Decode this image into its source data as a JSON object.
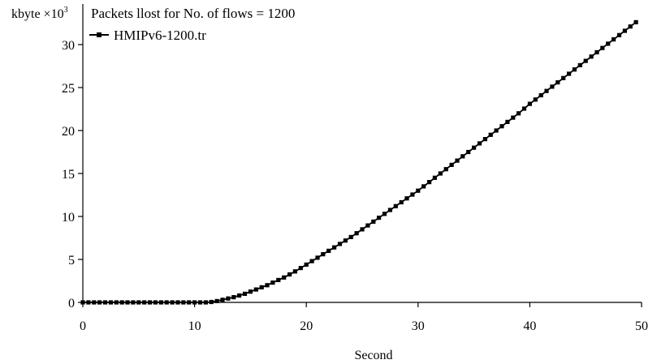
{
  "chart_data": {
    "type": "line",
    "title": "Packets llost for No. of flows = 1200",
    "xlabel": "Second",
    "ylabel": "kbyte ×10",
    "ylabel_exponent": "3",
    "xlim": [
      0,
      50
    ],
    "ylim": [
      0,
      33
    ],
    "x_ticks": [
      0,
      10,
      20,
      30,
      40,
      50
    ],
    "y_ticks": [
      0,
      5,
      10,
      15,
      20,
      25,
      30
    ],
    "grid": false,
    "legend_position": "top-left",
    "series": [
      {
        "name": "HMIPv6-1200.tr",
        "color": "#000000",
        "marker": "square",
        "x": [
          0,
          0.5,
          1,
          1.5,
          2,
          2.5,
          3,
          3.5,
          4,
          4.5,
          5,
          5.5,
          6,
          6.5,
          7,
          7.5,
          8,
          8.5,
          9,
          9.5,
          10,
          10.5,
          11,
          11.5,
          12,
          12.5,
          13,
          13.5,
          14,
          14.5,
          15,
          15.5,
          16,
          16.5,
          17,
          17.5,
          18,
          18.5,
          19,
          19.5,
          20,
          20.5,
          21,
          21.5,
          22,
          22.5,
          23,
          23.5,
          24,
          24.5,
          25,
          25.5,
          26,
          26.5,
          27,
          27.5,
          28,
          28.5,
          29,
          29.5,
          30,
          30.5,
          31,
          31.5,
          32,
          32.5,
          33,
          33.5,
          34,
          34.5,
          35,
          35.5,
          36,
          36.5,
          37,
          37.5,
          38,
          38.5,
          39,
          39.5,
          40,
          40.5,
          41,
          41.5,
          42,
          42.5,
          43,
          43.5,
          44,
          44.5,
          45,
          45.5,
          46,
          46.5,
          47,
          47.5,
          48,
          48.5,
          49,
          49.5
        ],
        "values": [
          0,
          0,
          0,
          0,
          0,
          0,
          0,
          0,
          0,
          0,
          0,
          0,
          0,
          0,
          0,
          0,
          0,
          0,
          0,
          0,
          0,
          0,
          0,
          0.05,
          0.15,
          0.3,
          0.45,
          0.6,
          0.8,
          1.0,
          1.25,
          1.5,
          1.75,
          2.0,
          2.3,
          2.6,
          2.9,
          3.25,
          3.6,
          4.0,
          4.4,
          4.8,
          5.2,
          5.6,
          6.0,
          6.4,
          6.8,
          7.2,
          7.6,
          8.05,
          8.5,
          8.95,
          9.4,
          9.85,
          10.3,
          10.75,
          11.2,
          11.65,
          12.1,
          12.55,
          13.0,
          13.5,
          14.0,
          14.5,
          15.0,
          15.5,
          16.0,
          16.5,
          17.0,
          17.5,
          18.0,
          18.5,
          19.0,
          19.5,
          20.0,
          20.5,
          21.0,
          21.5,
          22.0,
          22.55,
          23.1,
          23.6,
          24.1,
          24.6,
          25.1,
          25.6,
          26.1,
          26.6,
          27.1,
          27.6,
          28.1,
          28.6,
          29.1,
          29.6,
          30.1,
          30.6,
          31.1,
          31.6,
          32.1,
          32.6
        ]
      }
    ]
  }
}
